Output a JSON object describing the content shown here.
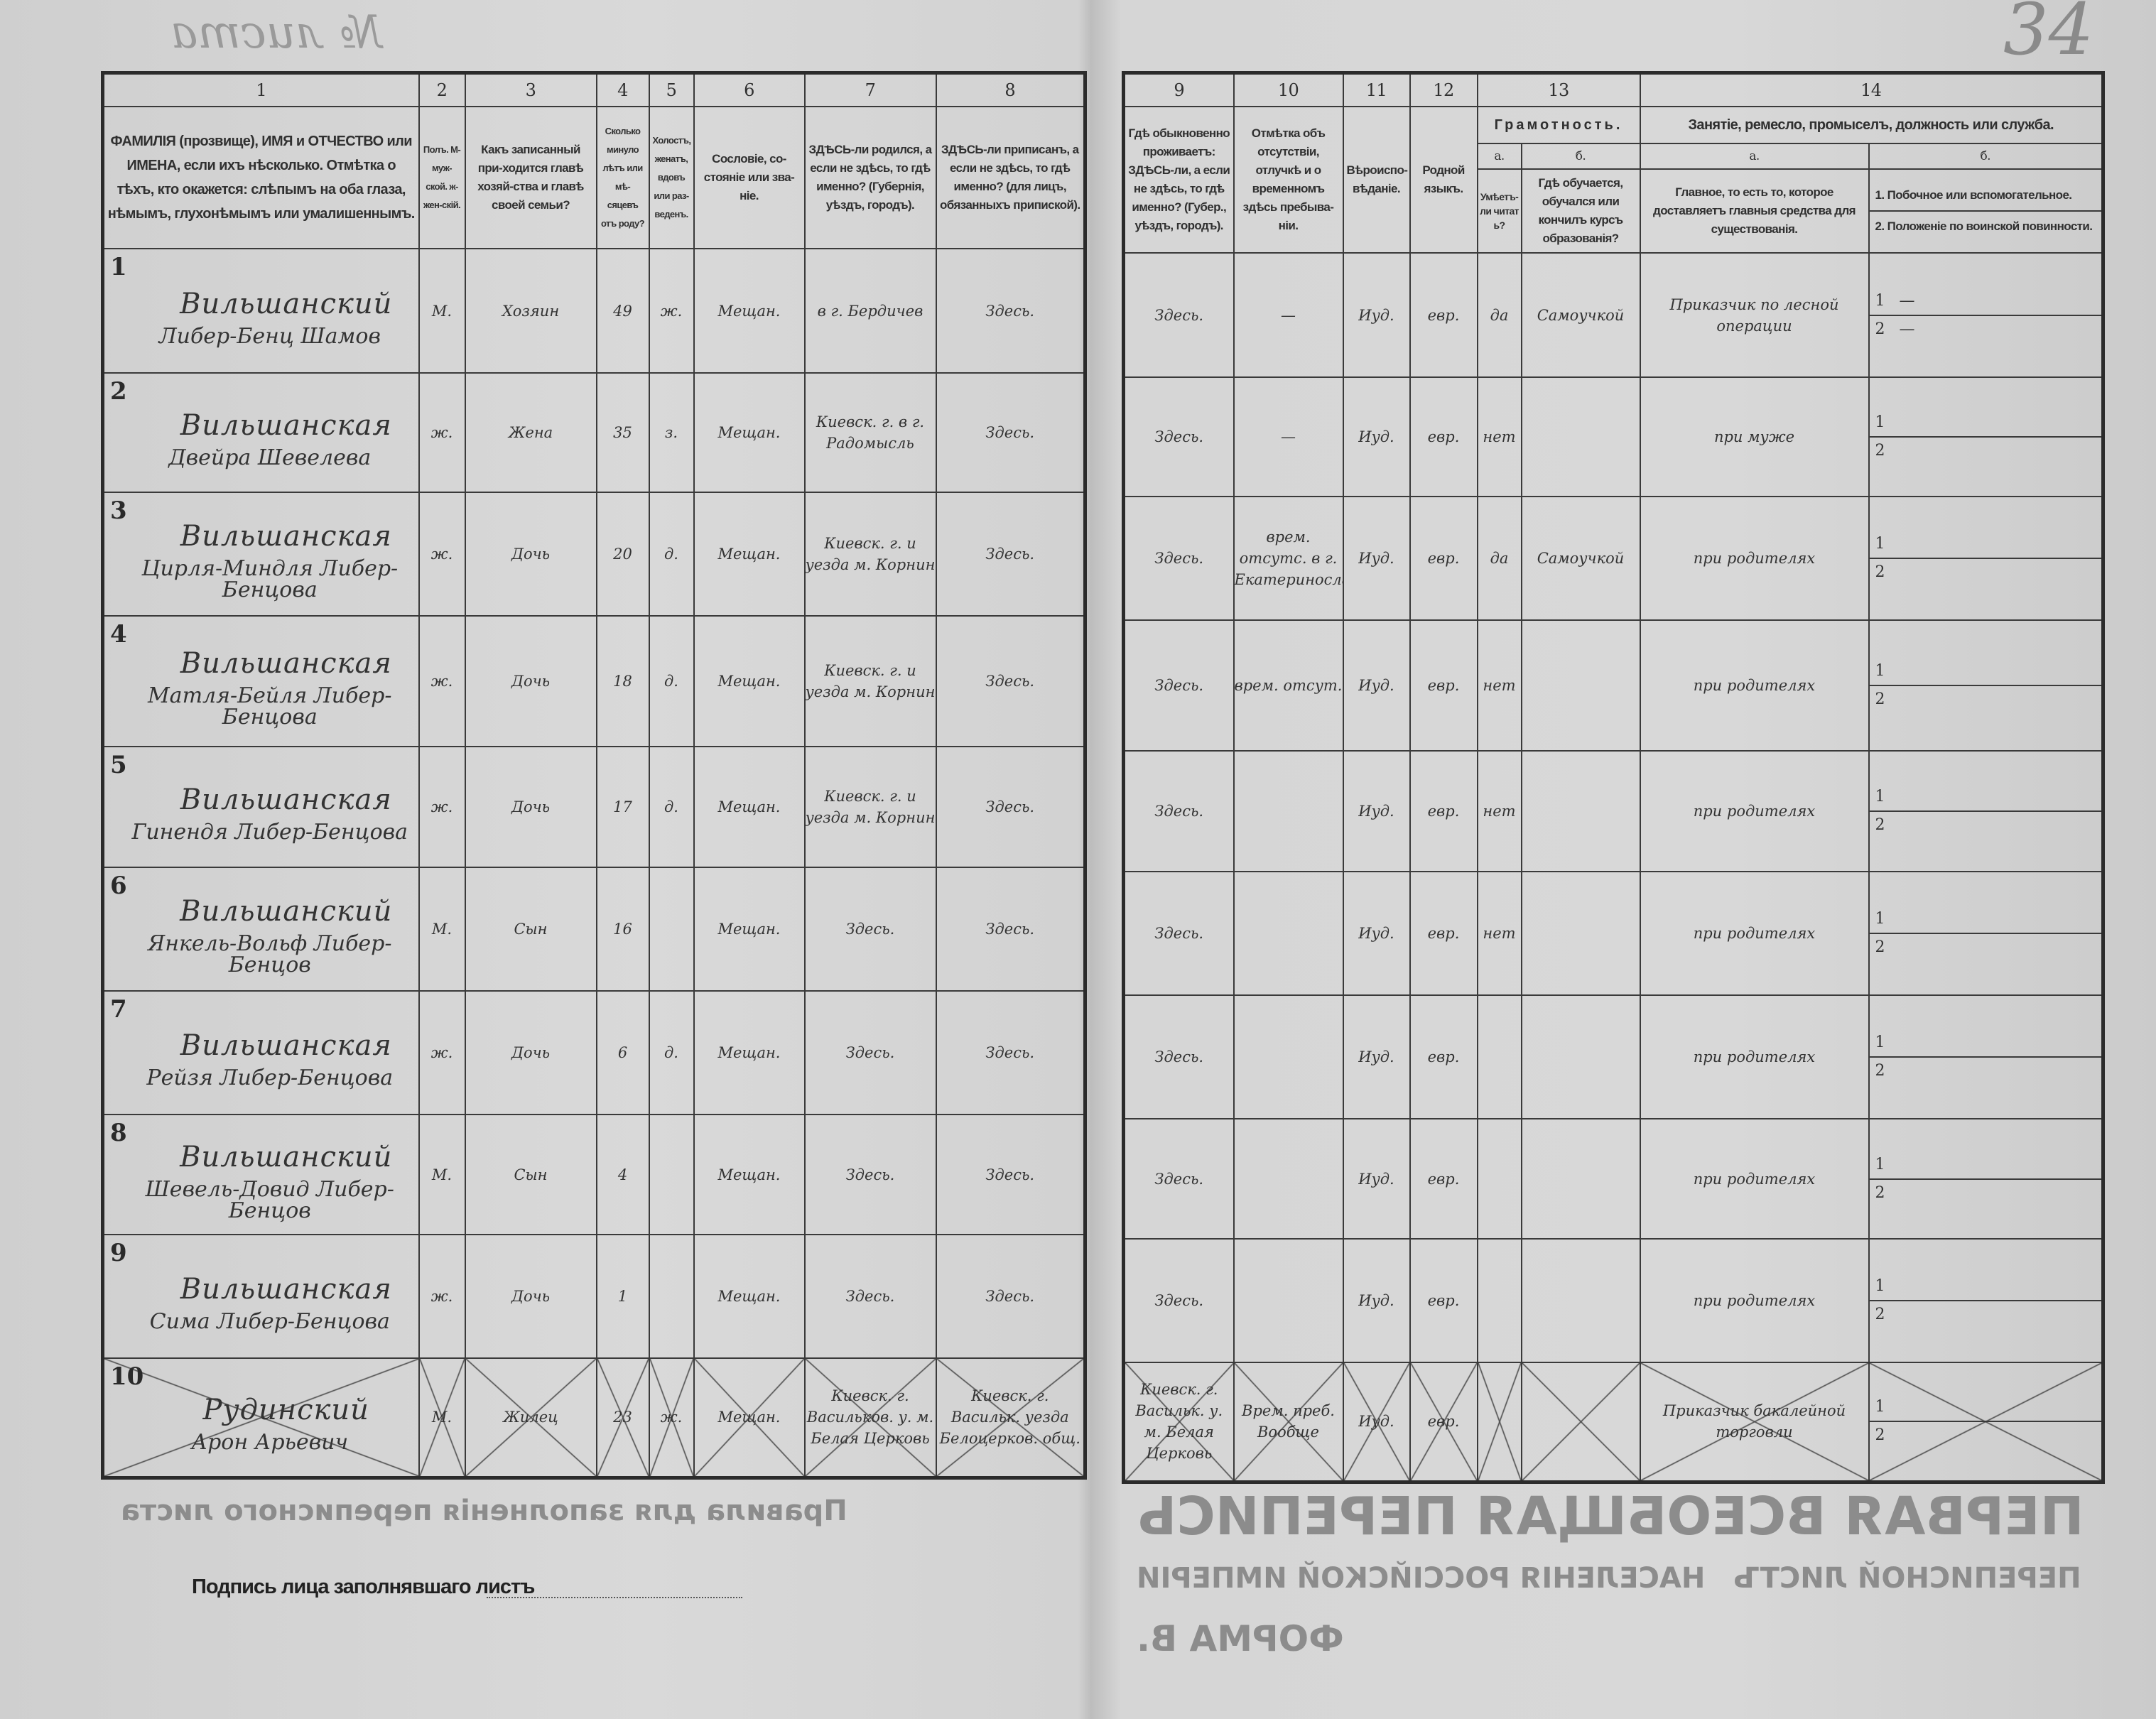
{
  "background_print": {
    "title": "ПЕРВАЯ ВСЕОБЩАЯ ПЕРЕПИСЬ",
    "subtitle": "НАСЕЛЕНІЯ РОССІЙСКОЙ ИМПЕРІИ",
    "sheet": "ПЕРЕПИСНОЙ ЛИСТЪ",
    "form": "ФОРМА В.",
    "rules": "Правила для заполненія переписного листа",
    "sheet_number_label": "№ листа"
  },
  "folio_number": "34",
  "left_headers": [
    {
      "num": "1",
      "text": "ФАМИЛІЯ (прозвище), ИМЯ и ОТЧЕСТВО или ИМЕНА, если ихъ нѣсколько. Отмѣтка о тѣхъ, кто окажется: слѣпымъ на оба глаза, нѣмымъ, глухонѣмымъ или умалишеннымъ."
    },
    {
      "num": "2",
      "text": "Полъ. М-муж-ской. ж-жен-скій."
    },
    {
      "num": "3",
      "text": "Какъ записанный при-ходится главѣ хозяй-ства и главѣ своей семьи?"
    },
    {
      "num": "4",
      "text": "Сколько минуло лѣтъ или мѣ-сяцевъ отъ роду?"
    },
    {
      "num": "5",
      "text": "Холостъ, женатъ, вдовъ или раз-веденъ."
    },
    {
      "num": "6",
      "text": "Сословіе, со-стояніе или зва-ніе."
    },
    {
      "num": "7",
      "text": "ЗДѢСЬ-ли родился, а если не здѣсь, то гдѣ именно? (Губернія, уѣздъ, городъ)."
    },
    {
      "num": "8",
      "text": "ЗДѢСЬ-ли приписанъ, а если не здѣсь, то гдѣ именно? (для лицъ, обязанныхъ припиской)."
    }
  ],
  "right_headers": {
    "c9": {
      "num": "9",
      "text": "Гдѣ обыкновенно проживаетъ: ЗДѢСЬ-ли, а если не здѣсь, то гдѣ именно? (Губер., уѣздъ, городъ)."
    },
    "c10": {
      "num": "10",
      "text": "Отмѣтка объ отсутствіи, отлучкѣ и о временномъ здѣсь пребыва-ніи."
    },
    "c11": {
      "num": "11",
      "text": "Вѣроиспо-вѣданіе."
    },
    "c12": {
      "num": "12",
      "text": "Родной языкъ."
    },
    "c13": {
      "num": "13",
      "group": "Грамотность.",
      "a_label": "а.",
      "b_label": "б.",
      "a_text": "Умѣетъ-ли читать?",
      "b_text": "Гдѣ обучается, обучался или кончилъ курсъ образованія?"
    },
    "c14": {
      "num": "14",
      "group": "Занятіе, ремесло, промыселъ, должность или служба.",
      "a_label": "а.",
      "b_label": "б.",
      "a_text": "Главное, то есть то, которое доставляетъ главныя средства для существованія.",
      "b_text_1": "1. Побочное или вспомогательное.",
      "b_text_2": "2. Положеніе по воинской повинности."
    }
  },
  "rows": [
    {
      "num": "1",
      "surname": "Вильшанский",
      "given": "Либер-Бенц Шамов",
      "sex": "М.",
      "relation": "Хозяин",
      "age": "49",
      "marital": "ж.",
      "estate": "Мещан.",
      "born": "в г. Бердичев",
      "registered": "Здесь.",
      "resides": "Здесь.",
      "absence": "—",
      "religion": "Иуд.",
      "language": "евр.",
      "literate": "да",
      "schooling": "Самоучкой",
      "occ_main": "Приказчик по лесной операции",
      "occ_side": "—",
      "military": "—",
      "crossed": false
    },
    {
      "num": "2",
      "surname": "Вильшанская",
      "given": "Двейра Шевелева",
      "sex": "ж.",
      "relation": "Жена",
      "age": "35",
      "marital": "з.",
      "estate": "Мещан.",
      "born": "Киевск. г. в г. Радомысль",
      "registered": "Здесь.",
      "resides": "Здесь.",
      "absence": "—",
      "religion": "Иуд.",
      "language": "евр.",
      "literate": "нет",
      "schooling": "",
      "occ_main": "при муже",
      "occ_side": "",
      "military": "",
      "crossed": false
    },
    {
      "num": "3",
      "surname": "Вильшанская",
      "given": "Цирля-Миндля Либер-Бенцова",
      "sex": "ж.",
      "relation": "Дочь",
      "age": "20",
      "marital": "д.",
      "estate": "Мещан.",
      "born": "Киевск. г. и уезда м. Корнин",
      "registered": "Здесь.",
      "resides": "Здесь.",
      "absence": "врем. отсутс. в г. Екатеринославе",
      "religion": "Иуд.",
      "language": "евр.",
      "literate": "да",
      "schooling": "Самоучкой",
      "occ_main": "при родителях",
      "occ_side": "",
      "military": "",
      "crossed": false
    },
    {
      "num": "4",
      "surname": "Вильшанская",
      "given": "Матля-Бейля Либер-Бенцова",
      "sex": "ж.",
      "relation": "Дочь",
      "age": "18",
      "marital": "д.",
      "estate": "Мещан.",
      "born": "Киевск. г. и уезда м. Корнин",
      "registered": "Здесь.",
      "resides": "Здесь.",
      "absence": "врем. отсут.",
      "religion": "Иуд.",
      "language": "евр.",
      "literate": "нет",
      "schooling": "",
      "occ_main": "при родителях",
      "occ_side": "",
      "military": "",
      "crossed": false
    },
    {
      "num": "5",
      "surname": "Вильшанская",
      "given": "Гинендя Либер-Бенцова",
      "sex": "ж.",
      "relation": "Дочь",
      "age": "17",
      "marital": "д.",
      "estate": "Мещан.",
      "born": "Киевск. г. и уезда м. Корнин",
      "registered": "Здесь.",
      "resides": "Здесь.",
      "absence": "",
      "religion": "Иуд.",
      "language": "евр.",
      "literate": "нет",
      "schooling": "",
      "occ_main": "при родителях",
      "occ_side": "",
      "military": "",
      "crossed": false
    },
    {
      "num": "6",
      "surname": "Вильшанский",
      "given": "Янкель-Вольф Либер-Бенцов",
      "sex": "М.",
      "relation": "Сын",
      "age": "16",
      "marital": "",
      "estate": "Мещан.",
      "born": "Здесь.",
      "registered": "Здесь.",
      "resides": "Здесь.",
      "absence": "",
      "religion": "Иуд.",
      "language": "евр.",
      "literate": "нет",
      "schooling": "",
      "occ_main": "при родителях",
      "occ_side": "",
      "military": "",
      "crossed": false
    },
    {
      "num": "7",
      "surname": "Вильшанская",
      "given": "Рейзя Либер-Бенцова",
      "sex": "ж.",
      "relation": "Дочь",
      "age": "6",
      "marital": "д.",
      "estate": "Мещан.",
      "born": "Здесь.",
      "registered": "Здесь.",
      "resides": "Здесь.",
      "absence": "",
      "religion": "Иуд.",
      "language": "евр.",
      "literate": "",
      "schooling": "",
      "occ_main": "при родителях",
      "occ_side": "",
      "military": "",
      "crossed": false
    },
    {
      "num": "8",
      "surname": "Вильшанский",
      "given": "Шевель-Довид Либер-Бенцов",
      "sex": "М.",
      "relation": "Сын",
      "age": "4",
      "marital": "",
      "estate": "Мещан.",
      "born": "Здесь.",
      "registered": "Здесь.",
      "resides": "Здесь.",
      "absence": "",
      "religion": "Иуд.",
      "language": "евр.",
      "literate": "",
      "schooling": "",
      "occ_main": "при родителях",
      "occ_side": "",
      "military": "",
      "crossed": false
    },
    {
      "num": "9",
      "surname": "Вильшанская",
      "given": "Сима Либер-Бенцова",
      "sex": "ж.",
      "relation": "Дочь",
      "age": "1",
      "marital": "",
      "estate": "Мещан.",
      "born": "Здесь.",
      "registered": "Здесь.",
      "resides": "Здесь.",
      "absence": "",
      "religion": "Иуд.",
      "language": "евр.",
      "literate": "",
      "schooling": "",
      "occ_main": "при родителях",
      "occ_side": "",
      "military": "",
      "crossed": false
    },
    {
      "num": "10",
      "surname": "Рудинский",
      "given": "Арон Арьевич",
      "sex": "М.",
      "relation": "Жилец",
      "age": "23",
      "marital": "ж.",
      "estate": "Мещан.",
      "born": "Киевск. г. Васильков. у. м. Белая Церковь",
      "registered": "Киевск. г. Васильк. уезда Белоцерков. общ.",
      "resides": "Киевск. г. Васильк. у. м. Белая Церковь",
      "absence": "Врем. преб. Вообще",
      "religion": "Иуд.",
      "language": "евр.",
      "literate": "",
      "schooling": "",
      "occ_main": "Приказчик бакалейной торговли",
      "occ_side": "",
      "military": "",
      "crossed": true
    }
  ],
  "signature_label": "Подпись лица заполнявшаго листъ"
}
